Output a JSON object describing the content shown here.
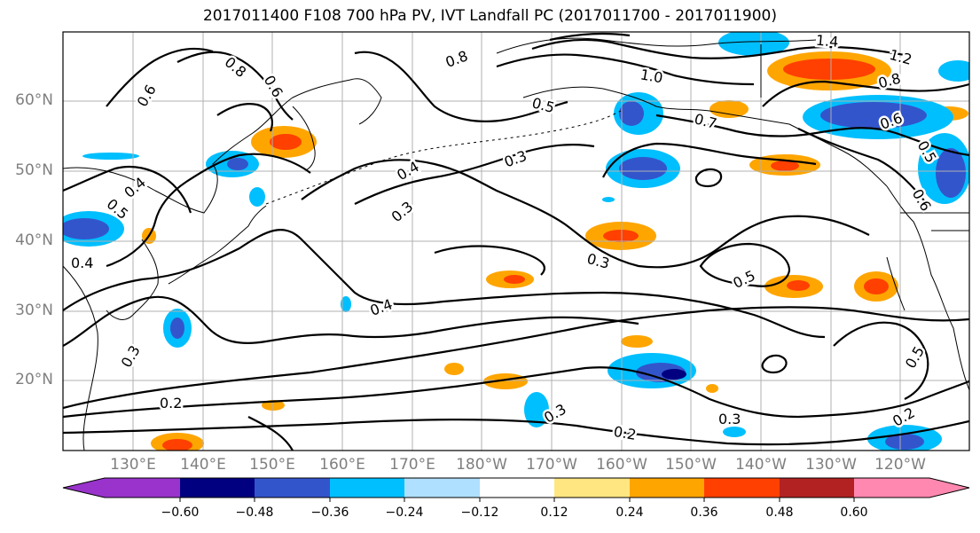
{
  "title": "2017011400 F108 700 hPa PV, IVT Landfall PC (2017011700 - 2017011900)",
  "axes": {
    "lat_labels": [
      "60°N",
      "50°N",
      "40°N",
      "30°N",
      "20°N"
    ],
    "lon_labels": [
      "130°E",
      "140°E",
      "150°E",
      "160°E",
      "170°E",
      "180°W",
      "170°W",
      "160°W",
      "150°W",
      "140°W",
      "130°W",
      "120°W"
    ]
  },
  "contour_labels": [
    "0.6",
    "0.8",
    "0.6",
    "0.4",
    "0.5",
    "0.4",
    "0.3",
    "0.2",
    "0.8",
    "1.0",
    "1.4",
    "1.2",
    "0.8",
    "0.6",
    "0.5",
    "0.7",
    "0.3",
    "0.4",
    "0.3",
    "0.4",
    "0.3",
    "0.5",
    "0.5",
    "0.3",
    "0.2",
    "0.3",
    "0.2",
    "0.5",
    "0.6"
  ],
  "colorbar": {
    "ticks": [
      "−0.60",
      "−0.48",
      "−0.36",
      "−0.24",
      "−0.12",
      "0.12",
      "0.24",
      "0.36",
      "0.48",
      "0.60"
    ],
    "colors": [
      "#9933cc",
      "#000080",
      "#3355cc",
      "#00bfff",
      "#b0e0ff",
      "#ffffff",
      "#ffe680",
      "#ffa500",
      "#ff4000",
      "#b22222",
      "#ff88b0"
    ]
  },
  "colors": {
    "grid": "#b0b0b0",
    "axis_text": "#7f7f7f",
    "contour": "#000000",
    "coast": "#000000"
  }
}
